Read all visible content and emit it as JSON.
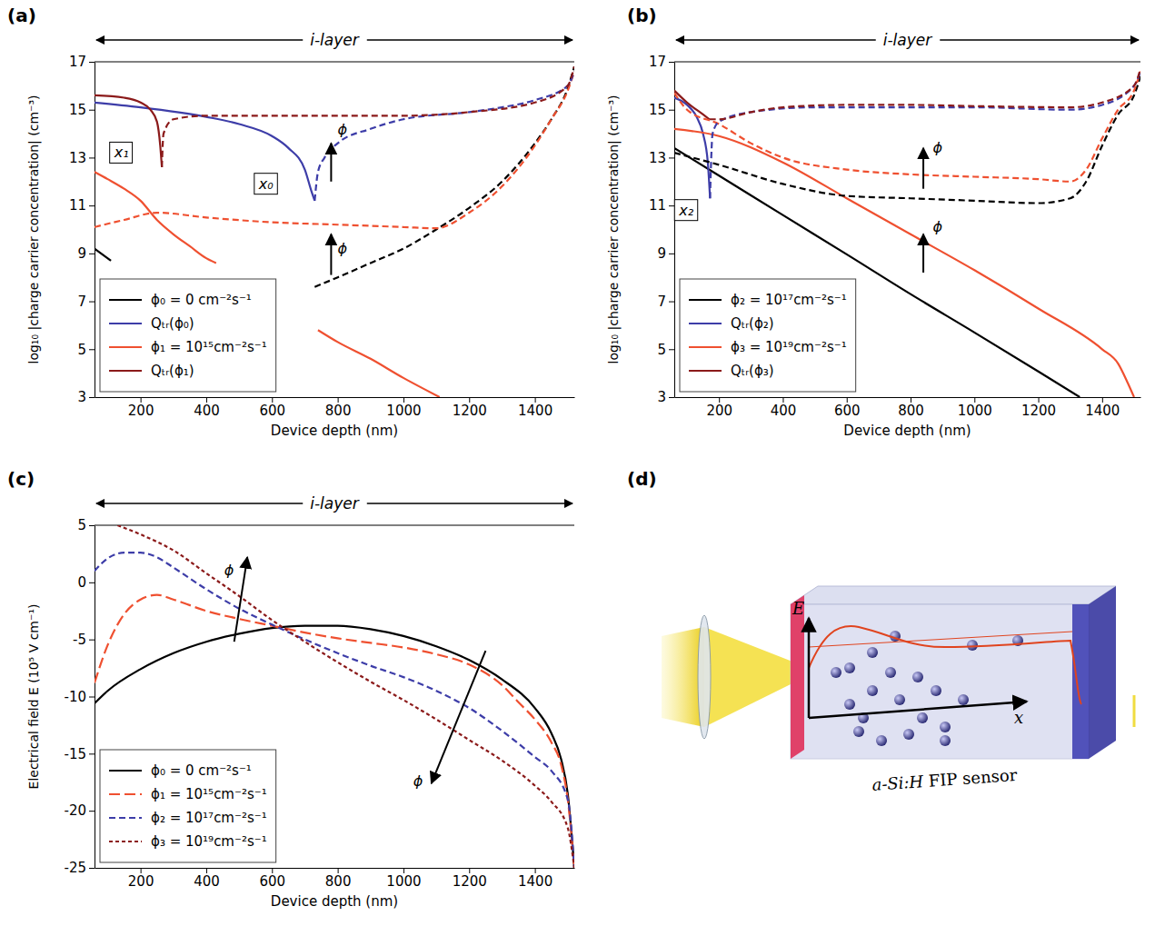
{
  "chart_data": [
    {
      "type": "line",
      "title": "(a)",
      "region_label": "i-layer",
      "x_label": "Device depth (nm)",
      "y_label": "log₁₀ |charge carrier concentration| (cm⁻³)",
      "xlim": [
        60,
        1520
      ],
      "xticks": [
        200,
        400,
        600,
        800,
        1000,
        1200,
        1400
      ],
      "ylim": [
        3,
        17
      ],
      "yticks": [
        3,
        5,
        7,
        9,
        11,
        13,
        15,
        17
      ],
      "grid": false,
      "legend": "lower left",
      "series": [
        {
          "name": "ϕ₀ = 0 cm⁻²s⁻¹",
          "color": "#000000",
          "line_style": "solid",
          "x": [
            60,
            110
          ],
          "values": [
            9.2,
            8.7
          ]
        },
        {
          "name": "Qₜᵣ(ϕ₀)",
          "color": "#3d3da8",
          "line_style": "solid",
          "x": [
            60,
            200,
            400,
            500,
            600,
            650,
            700,
            720,
            730
          ],
          "values": [
            15.3,
            15.1,
            14.7,
            14.4,
            13.9,
            13.4,
            12.5,
            11.6,
            11.2
          ]
        },
        {
          "name": "ϕ₁ = 10¹⁵cm⁻²s⁻¹",
          "color": "#ef5030",
          "line_style": "solid",
          "x": [
            60,
            100,
            150,
            200,
            250,
            300,
            350,
            400,
            430,
            580,
            740,
            800,
            900,
            1000,
            1110
          ],
          "values": [
            12.4,
            12.1,
            11.7,
            11.2,
            10.4,
            9.8,
            9.3,
            8.8,
            8.6,
            null,
            5.8,
            5.3,
            4.6,
            3.8,
            3.0
          ]
        },
        {
          "name": "Qₜᵣ(ϕ₁)",
          "color": "#8b1a1a",
          "line_style": "solid",
          "x": [
            60,
            150,
            200,
            230,
            250,
            260,
            265
          ],
          "values": [
            15.6,
            15.5,
            15.3,
            15.0,
            14.5,
            13.5,
            12.6
          ]
        },
        {
          "color": "#000000",
          "line_style": "dashed",
          "x": [
            730,
            800,
            900,
            1000,
            1100,
            1200,
            1300,
            1400,
            1450,
            1500,
            1520
          ],
          "values": [
            7.6,
            8.0,
            8.6,
            9.2,
            10.0,
            10.9,
            12.0,
            13.6,
            14.6,
            15.9,
            16.8
          ]
        },
        {
          "color": "#ef5030",
          "line_style": "dashed",
          "x": [
            60,
            150,
            250,
            400,
            600,
            800,
            1000,
            1100,
            1200,
            1300,
            1400,
            1450,
            1500,
            1520
          ],
          "values": [
            10.1,
            10.4,
            10.7,
            10.5,
            10.3,
            10.2,
            10.1,
            10.05,
            10.7,
            11.8,
            13.5,
            14.6,
            15.8,
            16.6
          ]
        },
        {
          "color": "#3d3da8",
          "line_style": "dashed",
          "x": [
            730,
            740,
            760,
            800,
            900,
            1000,
            1200,
            1300,
            1400,
            1500,
            1520
          ],
          "values": [
            11.2,
            12.4,
            13.0,
            13.6,
            14.2,
            14.6,
            14.9,
            15.1,
            15.4,
            16.0,
            16.6
          ]
        },
        {
          "color": "#8b1a1a",
          "line_style": "dashed",
          "x": [
            265,
            270,
            300,
            400,
            600,
            800,
            1000,
            1200,
            1400,
            1500,
            1520
          ],
          "values": [
            12.6,
            14.0,
            14.6,
            14.75,
            14.75,
            14.75,
            14.75,
            14.9,
            15.3,
            16.0,
            16.8
          ]
        }
      ],
      "annotations": [
        {
          "text": "x₁",
          "x": 120,
          "y": 13.0
        },
        {
          "text": "x₀",
          "x": 560,
          "y": 11.7
        },
        {
          "text": "ϕ",
          "x": 800,
          "y": 13.95,
          "arrow": [
            [
              780,
              12.0
            ],
            [
              780,
              13.6
            ]
          ]
        },
        {
          "text": "ϕ",
          "x": 800,
          "y": 9.0,
          "arrow": [
            [
              780,
              8.1
            ],
            [
              780,
              9.8
            ]
          ]
        }
      ]
    },
    {
      "type": "line",
      "title": "(b)",
      "region_label": "i-layer",
      "x_label": "Device depth (nm)",
      "y_label": "log₁₀ |charge carrier concentration| (cm⁻³)",
      "xlim": [
        60,
        1520
      ],
      "xticks": [
        200,
        400,
        600,
        800,
        1000,
        1200,
        1400
      ],
      "ylim": [
        3,
        17
      ],
      "yticks": [
        3,
        5,
        7,
        9,
        11,
        13,
        15,
        17
      ],
      "grid": false,
      "legend": "lower left",
      "series": [
        {
          "name": "ϕ₂ = 10¹⁷cm⁻²s⁻¹",
          "color": "#000000",
          "line_style": "solid",
          "x": [
            60,
            200,
            400,
            600,
            800,
            1000,
            1200,
            1330
          ],
          "values": [
            13.4,
            12.25,
            10.6,
            8.96,
            7.3,
            5.7,
            4.07,
            3.0
          ]
        },
        {
          "name": "Qₜᵣ(ϕ₂)",
          "color": "#3d3da8",
          "line_style": "solid",
          "x": [
            60,
            100,
            130,
            150,
            165,
            172
          ],
          "values": [
            15.5,
            15.2,
            14.7,
            14.0,
            12.8,
            11.3
          ]
        },
        {
          "name": "ϕ₃ = 10¹⁹cm⁻²s⁻¹",
          "color": "#ef5030",
          "line_style": "solid",
          "x": [
            60,
            200,
            400,
            600,
            800,
            1000,
            1200,
            1400,
            1450,
            1480,
            1500
          ],
          "values": [
            14.2,
            13.9,
            12.8,
            11.3,
            9.8,
            8.3,
            6.7,
            5.0,
            4.4,
            3.6,
            3.0
          ]
        },
        {
          "name": "Qₜᵣ(ϕ₃)",
          "color": "#8b1a1a",
          "line_style": "solid",
          "x": [
            60,
            100,
            150,
            170
          ],
          "values": [
            15.8,
            15.3,
            14.8,
            14.6
          ]
        },
        {
          "color": "#000000",
          "line_style": "dashed",
          "x": [
            60,
            200,
            400,
            600,
            800,
            1000,
            1200,
            1300,
            1350,
            1400,
            1450,
            1500,
            1520
          ],
          "values": [
            13.2,
            12.7,
            11.9,
            11.4,
            11.3,
            11.2,
            11.1,
            11.3,
            12.0,
            13.5,
            14.8,
            15.6,
            16.4
          ]
        },
        {
          "color": "#ef5030",
          "line_style": "dashed",
          "x": [
            60,
            100,
            200,
            300,
            400,
            600,
            800,
            1000,
            1200,
            1300,
            1350,
            1400,
            1450,
            1500,
            1520
          ],
          "values": [
            15.7,
            15.0,
            14.4,
            13.6,
            13.0,
            12.5,
            12.3,
            12.2,
            12.1,
            12.0,
            12.5,
            13.8,
            15.0,
            15.8,
            16.6
          ]
        },
        {
          "color": "#3d3da8",
          "line_style": "dashed",
          "x": [
            172,
            180,
            200,
            300,
            500,
            800,
            1000,
            1300,
            1400,
            1500,
            1520
          ],
          "values": [
            11.3,
            14.0,
            14.5,
            14.9,
            15.1,
            15.1,
            15.1,
            15.0,
            15.2,
            16.0,
            16.6
          ]
        },
        {
          "color": "#8b1a1a",
          "line_style": "dashed",
          "x": [
            170,
            200,
            300,
            400,
            600,
            800,
            1000,
            1300,
            1400,
            1500,
            1520
          ],
          "values": [
            14.6,
            14.6,
            14.9,
            15.1,
            15.2,
            15.2,
            15.15,
            15.1,
            15.3,
            16.0,
            16.7
          ]
        }
      ],
      "annotations": [
        {
          "text": "x₂",
          "x": 75,
          "y": 10.6
        },
        {
          "text": "ϕ",
          "x": 870,
          "y": 13.2,
          "arrow": [
            [
              840,
              11.7
            ],
            [
              840,
              13.4
            ]
          ]
        },
        {
          "text": "ϕ",
          "x": 870,
          "y": 9.9,
          "arrow": [
            [
              840,
              8.2
            ],
            [
              840,
              9.8
            ]
          ]
        }
      ]
    },
    {
      "type": "line",
      "title": "(c)",
      "region_label": "i-layer",
      "x_label": "Device depth (nm)",
      "y_label": "Electrical field E (10⁵ V cm⁻¹)",
      "xlim": [
        60,
        1520
      ],
      "xticks": [
        200,
        400,
        600,
        800,
        1000,
        1200,
        1400
      ],
      "ylim": [
        -25,
        5
      ],
      "yticks": [
        -25,
        -20,
        -15,
        -10,
        -5,
        0,
        5
      ],
      "grid": false,
      "legend": "lower left",
      "series": [
        {
          "name": "ϕ₀ = 0 cm⁻²s⁻¹",
          "color": "#000000",
          "line_style": "solid",
          "x": [
            60,
            100,
            200,
            300,
            400,
            500,
            600,
            700,
            800,
            900,
            1000,
            1100,
            1200,
            1300,
            1400,
            1450,
            1480,
            1500,
            1520
          ],
          "values": [
            -10.6,
            -9.5,
            -7.6,
            -6.2,
            -5.2,
            -4.5,
            -4.0,
            -3.8,
            -3.8,
            -4.1,
            -4.7,
            -5.6,
            -6.8,
            -8.5,
            -11.0,
            -13.2,
            -15.5,
            -18.5,
            -25
          ]
        },
        {
          "name": "ϕ₁ = 10¹⁵cm⁻²s⁻¹",
          "color": "#ef5030",
          "line_style": "longdash",
          "x": [
            60,
            100,
            150,
            200,
            250,
            300,
            400,
            500,
            600,
            700,
            800,
            900,
            1000,
            1100,
            1200,
            1300,
            1350,
            1400,
            1450,
            1480,
            1500,
            1520
          ],
          "values": [
            -8.8,
            -5.5,
            -2.8,
            -1.5,
            -1.1,
            -1.5,
            -2.5,
            -3.2,
            -3.8,
            -4.4,
            -4.9,
            -5.3,
            -5.7,
            -6.3,
            -7.2,
            -9.0,
            -10.5,
            -12.0,
            -14.0,
            -16.0,
            -19.0,
            -25
          ]
        },
        {
          "name": "ϕ₂ = 10¹⁷cm⁻²s⁻¹",
          "color": "#3d3da8",
          "line_style": "dashed",
          "x": [
            60,
            100,
            150,
            200,
            250,
            300,
            400,
            500,
            600,
            700,
            800,
            900,
            1000,
            1100,
            1200,
            1300,
            1400,
            1450,
            1500,
            1520
          ],
          "values": [
            1.0,
            2.1,
            2.6,
            2.6,
            2.2,
            1.3,
            -0.6,
            -2.3,
            -3.7,
            -5.0,
            -6.2,
            -7.3,
            -8.3,
            -9.5,
            -11.0,
            -13.0,
            -15.3,
            -16.5,
            -19.0,
            -25
          ]
        },
        {
          "name": "ϕ₃ = 10¹⁹cm⁻²s⁻¹",
          "color": "#8b1a1a",
          "line_style": "shortdash",
          "x": [
            130,
            200,
            300,
            400,
            500,
            600,
            700,
            800,
            900,
            1000,
            1100,
            1200,
            1300,
            1400,
            1450,
            1500,
            1520
          ],
          "values": [
            5.0,
            4.2,
            2.8,
            0.8,
            -1.2,
            -3.3,
            -5.2,
            -7.0,
            -8.7,
            -10.3,
            -12.0,
            -13.8,
            -15.6,
            -17.8,
            -19.2,
            -21.5,
            -25
          ]
        }
      ],
      "annotations": [
        {
          "text": "ϕ",
          "x": 455,
          "y": 0.6,
          "arrow": [
            [
              485,
              -5.2
            ],
            [
              525,
              2.2
            ]
          ]
        },
        {
          "text": "ϕ",
          "x": 1030,
          "y": -17.8,
          "arrow": [
            [
              1250,
              -6.0
            ],
            [
              1085,
              -17.6
            ]
          ]
        }
      ]
    }
  ],
  "diagram": {
    "panel": "(d)",
    "title": "a-Si:H FIP sensor",
    "axis_labels": [
      "E",
      "x"
    ]
  }
}
